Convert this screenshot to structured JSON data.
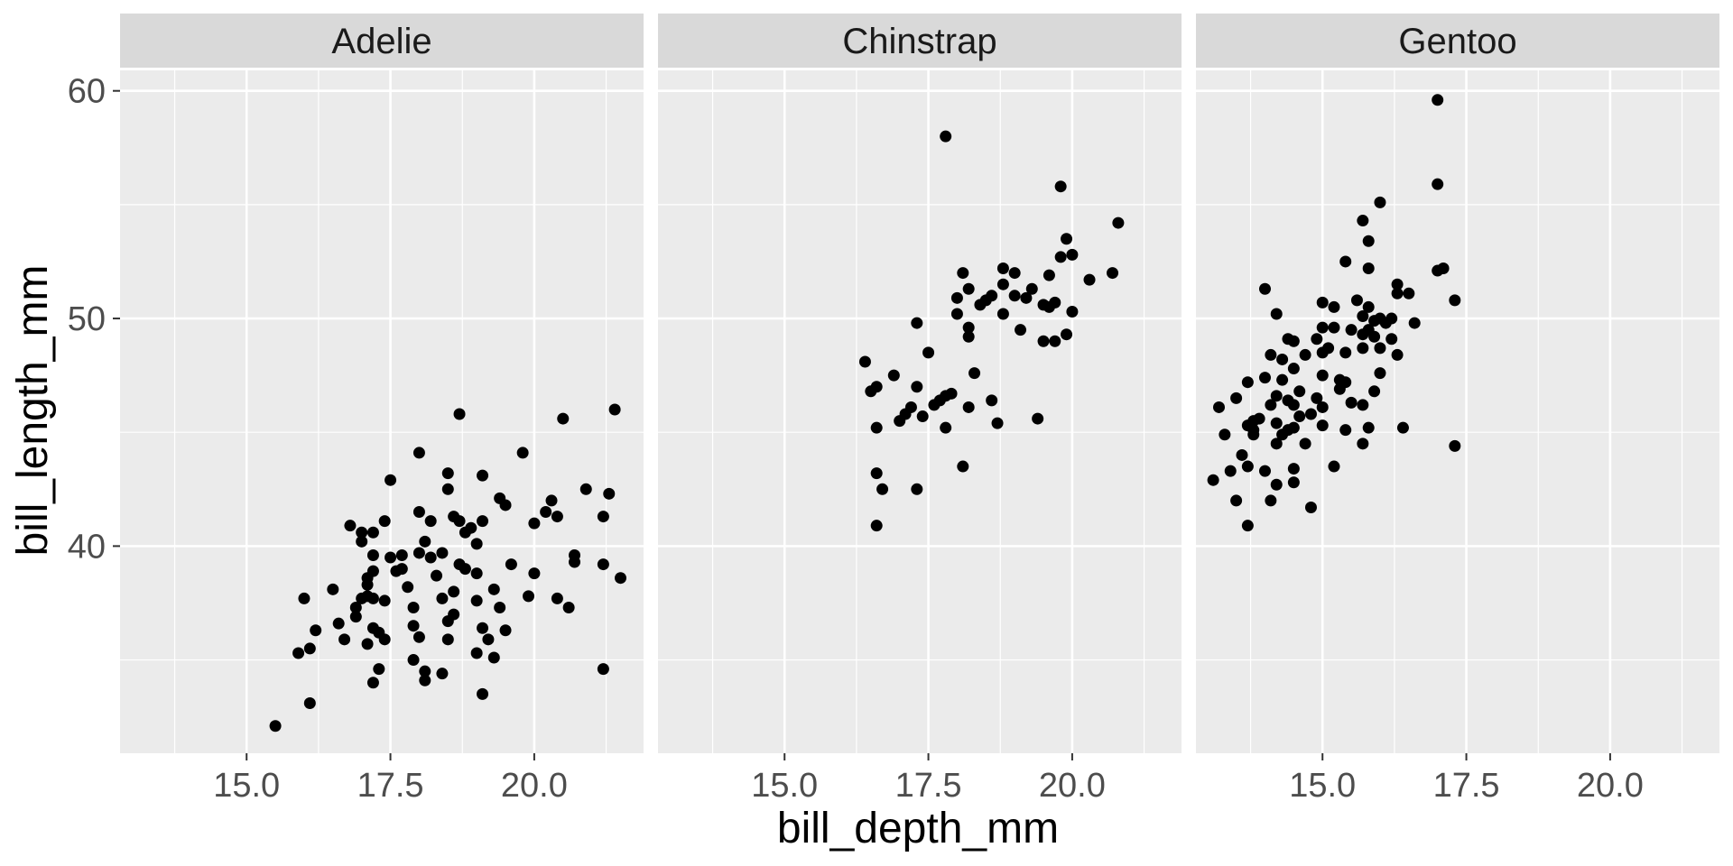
{
  "chart_data": {
    "type": "scatter",
    "facet_variable": "species",
    "xlabel": "bill_depth_mm",
    "ylabel": "bill_length_mm",
    "xlim": [
      12.8,
      21.9
    ],
    "ylim": [
      30.9,
      60.9
    ],
    "x_ticks": [
      15.0,
      17.5,
      20.0
    ],
    "x_tick_labels": [
      "15.0",
      "17.5",
      "20.0"
    ],
    "y_ticks": [
      40,
      50,
      60
    ],
    "y_tick_labels": [
      "40",
      "50",
      "60"
    ],
    "grid": true,
    "point_color": "#000000",
    "panel_background": "#ebebeb",
    "strip_background": "#d9d9d9",
    "panels": [
      {
        "name": "Adelie",
        "points": [
          [
            15.5,
            32.1
          ],
          [
            16.1,
            33.1
          ],
          [
            15.9,
            35.3
          ],
          [
            16.1,
            35.5
          ],
          [
            16.0,
            37.7
          ],
          [
            16.2,
            36.3
          ],
          [
            16.5,
            38.1
          ],
          [
            16.6,
            36.6
          ],
          [
            16.7,
            35.9
          ],
          [
            16.9,
            36.9
          ],
          [
            16.9,
            37.3
          ],
          [
            16.8,
            40.9
          ],
          [
            17.0,
            40.6
          ],
          [
            17.0,
            40.2
          ],
          [
            17.1,
            38.6
          ],
          [
            17.1,
            38.3
          ],
          [
            17.0,
            37.7
          ],
          [
            17.1,
            37.8
          ],
          [
            17.2,
            37.7
          ],
          [
            17.2,
            39.6
          ],
          [
            17.2,
            38.9
          ],
          [
            17.2,
            36.4
          ],
          [
            17.1,
            35.7
          ],
          [
            17.2,
            34.0
          ],
          [
            17.3,
            34.6
          ],
          [
            17.3,
            36.2
          ],
          [
            17.4,
            35.9
          ],
          [
            17.4,
            37.6
          ],
          [
            17.5,
            39.5
          ],
          [
            17.2,
            40.6
          ],
          [
            17.4,
            41.1
          ],
          [
            17.6,
            38.9
          ],
          [
            17.7,
            39.0
          ],
          [
            17.8,
            38.2
          ],
          [
            17.9,
            37.3
          ],
          [
            17.9,
            36.5
          ],
          [
            18.0,
            36.0
          ],
          [
            17.9,
            35.0
          ],
          [
            18.1,
            34.5
          ],
          [
            18.1,
            34.1
          ],
          [
            18.0,
            39.7
          ],
          [
            17.7,
            39.6
          ],
          [
            18.1,
            40.2
          ],
          [
            18.0,
            41.5
          ],
          [
            18.2,
            41.1
          ],
          [
            18.2,
            39.5
          ],
          [
            18.4,
            39.7
          ],
          [
            18.3,
            38.7
          ],
          [
            18.4,
            37.7
          ],
          [
            18.5,
            36.7
          ],
          [
            18.5,
            35.9
          ],
          [
            18.4,
            34.4
          ],
          [
            18.6,
            37.0
          ],
          [
            18.6,
            38.0
          ],
          [
            18.7,
            39.2
          ],
          [
            18.8,
            39.0
          ],
          [
            18.8,
            40.6
          ],
          [
            18.7,
            41.1
          ],
          [
            18.6,
            41.3
          ],
          [
            18.5,
            42.5
          ],
          [
            18.5,
            43.2
          ],
          [
            18.7,
            45.8
          ],
          [
            18.0,
            44.1
          ],
          [
            17.5,
            42.9
          ],
          [
            18.9,
            40.8
          ],
          [
            19.0,
            40.1
          ],
          [
            19.1,
            41.1
          ],
          [
            19.0,
            38.8
          ],
          [
            19.0,
            37.6
          ],
          [
            19.1,
            36.4
          ],
          [
            19.2,
            35.9
          ],
          [
            19.0,
            35.3
          ],
          [
            19.1,
            33.5
          ],
          [
            19.3,
            38.1
          ],
          [
            19.4,
            37.3
          ],
          [
            19.5,
            36.3
          ],
          [
            19.3,
            35.1
          ],
          [
            19.6,
            39.2
          ],
          [
            19.4,
            42.1
          ],
          [
            19.5,
            41.8
          ],
          [
            19.1,
            43.1
          ],
          [
            19.9,
            37.8
          ],
          [
            20.0,
            38.8
          ],
          [
            20.0,
            41.0
          ],
          [
            20.2,
            41.5
          ],
          [
            20.3,
            42.0
          ],
          [
            20.4,
            41.3
          ],
          [
            20.4,
            37.7
          ],
          [
            19.8,
            44.1
          ],
          [
            20.5,
            45.6
          ],
          [
            20.7,
            39.3
          ],
          [
            20.7,
            39.6
          ],
          [
            20.6,
            37.3
          ],
          [
            20.9,
            42.5
          ],
          [
            21.2,
            34.6
          ],
          [
            21.2,
            41.3
          ],
          [
            21.2,
            39.2
          ],
          [
            21.3,
            42.3
          ],
          [
            21.5,
            38.6
          ],
          [
            21.4,
            46.0
          ]
        ]
      },
      {
        "name": "Chinstrap",
        "points": [
          [
            16.4,
            48.1
          ],
          [
            16.5,
            46.8
          ],
          [
            16.6,
            47.0
          ],
          [
            16.6,
            45.2
          ],
          [
            16.6,
            43.2
          ],
          [
            16.7,
            42.5
          ],
          [
            16.6,
            40.9
          ],
          [
            16.9,
            47.5
          ],
          [
            17.0,
            45.5
          ],
          [
            17.1,
            45.8
          ],
          [
            17.2,
            46.1
          ],
          [
            17.3,
            47.0
          ],
          [
            17.3,
            49.8
          ],
          [
            17.3,
            42.5
          ],
          [
            17.4,
            45.7
          ],
          [
            17.5,
            48.5
          ],
          [
            17.6,
            46.2
          ],
          [
            17.7,
            46.4
          ],
          [
            17.8,
            46.6
          ],
          [
            17.8,
            45.2
          ],
          [
            17.8,
            58.0
          ],
          [
            17.9,
            46.7
          ],
          [
            18.0,
            50.9
          ],
          [
            18.0,
            50.2
          ],
          [
            18.1,
            43.5
          ],
          [
            18.2,
            46.1
          ],
          [
            18.2,
            49.2
          ],
          [
            18.2,
            49.6
          ],
          [
            18.2,
            51.3
          ],
          [
            18.1,
            52.0
          ],
          [
            18.3,
            47.6
          ],
          [
            18.4,
            50.6
          ],
          [
            18.5,
            50.8
          ],
          [
            18.6,
            51.0
          ],
          [
            18.6,
            46.4
          ],
          [
            18.7,
            45.4
          ],
          [
            18.8,
            50.2
          ],
          [
            18.8,
            51.5
          ],
          [
            18.8,
            52.2
          ],
          [
            19.0,
            51.0
          ],
          [
            19.0,
            52.0
          ],
          [
            19.1,
            49.5
          ],
          [
            19.2,
            50.9
          ],
          [
            19.3,
            51.3
          ],
          [
            19.4,
            45.6
          ],
          [
            19.5,
            50.6
          ],
          [
            19.6,
            51.9
          ],
          [
            19.5,
            49.0
          ],
          [
            19.6,
            50.5
          ],
          [
            19.7,
            50.7
          ],
          [
            19.7,
            49.0
          ],
          [
            19.8,
            52.7
          ],
          [
            19.9,
            53.5
          ],
          [
            19.9,
            49.3
          ],
          [
            20.0,
            50.3
          ],
          [
            20.0,
            52.8
          ],
          [
            20.3,
            51.7
          ],
          [
            19.8,
            55.8
          ],
          [
            20.7,
            52.0
          ],
          [
            20.8,
            54.2
          ]
        ]
      },
      {
        "name": "Gentoo",
        "points": [
          [
            13.1,
            42.9
          ],
          [
            13.2,
            46.1
          ],
          [
            13.3,
            44.9
          ],
          [
            13.4,
            43.3
          ],
          [
            13.5,
            42.0
          ],
          [
            13.5,
            46.5
          ],
          [
            13.6,
            44.0
          ],
          [
            13.7,
            43.5
          ],
          [
            13.7,
            45.3
          ],
          [
            13.7,
            47.2
          ],
          [
            13.7,
            40.9
          ],
          [
            13.8,
            45.5
          ],
          [
            13.8,
            45.1
          ],
          [
            13.8,
            44.9
          ],
          [
            13.9,
            45.6
          ],
          [
            14.0,
            47.4
          ],
          [
            14.0,
            43.3
          ],
          [
            14.1,
            42.0
          ],
          [
            14.1,
            48.4
          ],
          [
            14.1,
            46.2
          ],
          [
            14.2,
            44.5
          ],
          [
            14.2,
            42.7
          ],
          [
            14.2,
            46.6
          ],
          [
            14.2,
            45.4
          ],
          [
            14.3,
            47.3
          ],
          [
            14.3,
            48.2
          ],
          [
            14.3,
            44.9
          ],
          [
            14.4,
            45.1
          ],
          [
            14.4,
            46.4
          ],
          [
            14.4,
            49.1
          ],
          [
            14.5,
            46.2
          ],
          [
            14.5,
            43.4
          ],
          [
            14.5,
            45.2
          ],
          [
            14.5,
            47.8
          ],
          [
            14.5,
            42.8
          ],
          [
            14.6,
            45.7
          ],
          [
            14.6,
            46.8
          ],
          [
            14.7,
            48.4
          ],
          [
            14.7,
            44.5
          ],
          [
            14.8,
            45.8
          ],
          [
            14.8,
            41.7
          ],
          [
            14.9,
            46.5
          ],
          [
            14.9,
            49.1
          ],
          [
            15.0,
            45.3
          ],
          [
            15.0,
            46.1
          ],
          [
            15.0,
            47.5
          ],
          [
            15.0,
            48.5
          ],
          [
            15.0,
            49.6
          ],
          [
            15.0,
            50.7
          ],
          [
            15.1,
            48.7
          ],
          [
            15.2,
            43.5
          ],
          [
            15.2,
            49.6
          ],
          [
            15.2,
            50.5
          ],
          [
            15.3,
            46.9
          ],
          [
            15.3,
            47.3
          ],
          [
            15.4,
            45.1
          ],
          [
            15.4,
            47.2
          ],
          [
            15.4,
            48.5
          ],
          [
            15.5,
            46.3
          ],
          [
            15.5,
            49.5
          ],
          [
            15.6,
            50.8
          ],
          [
            15.7,
            44.5
          ],
          [
            15.7,
            46.2
          ],
          [
            15.7,
            48.7
          ],
          [
            15.7,
            49.3
          ],
          [
            15.7,
            50.1
          ],
          [
            15.8,
            45.2
          ],
          [
            15.8,
            49.5
          ],
          [
            15.8,
            50.5
          ],
          [
            15.9,
            46.8
          ],
          [
            15.9,
            49.2
          ],
          [
            15.9,
            49.9
          ],
          [
            16.0,
            48.7
          ],
          [
            16.0,
            50.0
          ],
          [
            16.0,
            55.1
          ],
          [
            16.1,
            49.8
          ],
          [
            16.2,
            49.1
          ],
          [
            16.2,
            50.0
          ],
          [
            16.3,
            48.4
          ],
          [
            16.3,
            51.1
          ],
          [
            16.3,
            51.5
          ],
          [
            16.4,
            45.2
          ],
          [
            16.5,
            51.1
          ],
          [
            16.6,
            49.8
          ],
          [
            15.8,
            53.4
          ],
          [
            15.7,
            54.3
          ],
          [
            15.4,
            52.5
          ],
          [
            15.8,
            52.2
          ],
          [
            16.0,
            47.6
          ],
          [
            17.0,
            52.1
          ],
          [
            17.1,
            52.2
          ],
          [
            17.0,
            55.9
          ],
          [
            17.0,
            59.6
          ],
          [
            17.3,
            50.8
          ],
          [
            17.3,
            44.4
          ],
          [
            14.0,
            51.3
          ],
          [
            14.2,
            50.2
          ],
          [
            14.5,
            49.0
          ]
        ]
      }
    ]
  }
}
